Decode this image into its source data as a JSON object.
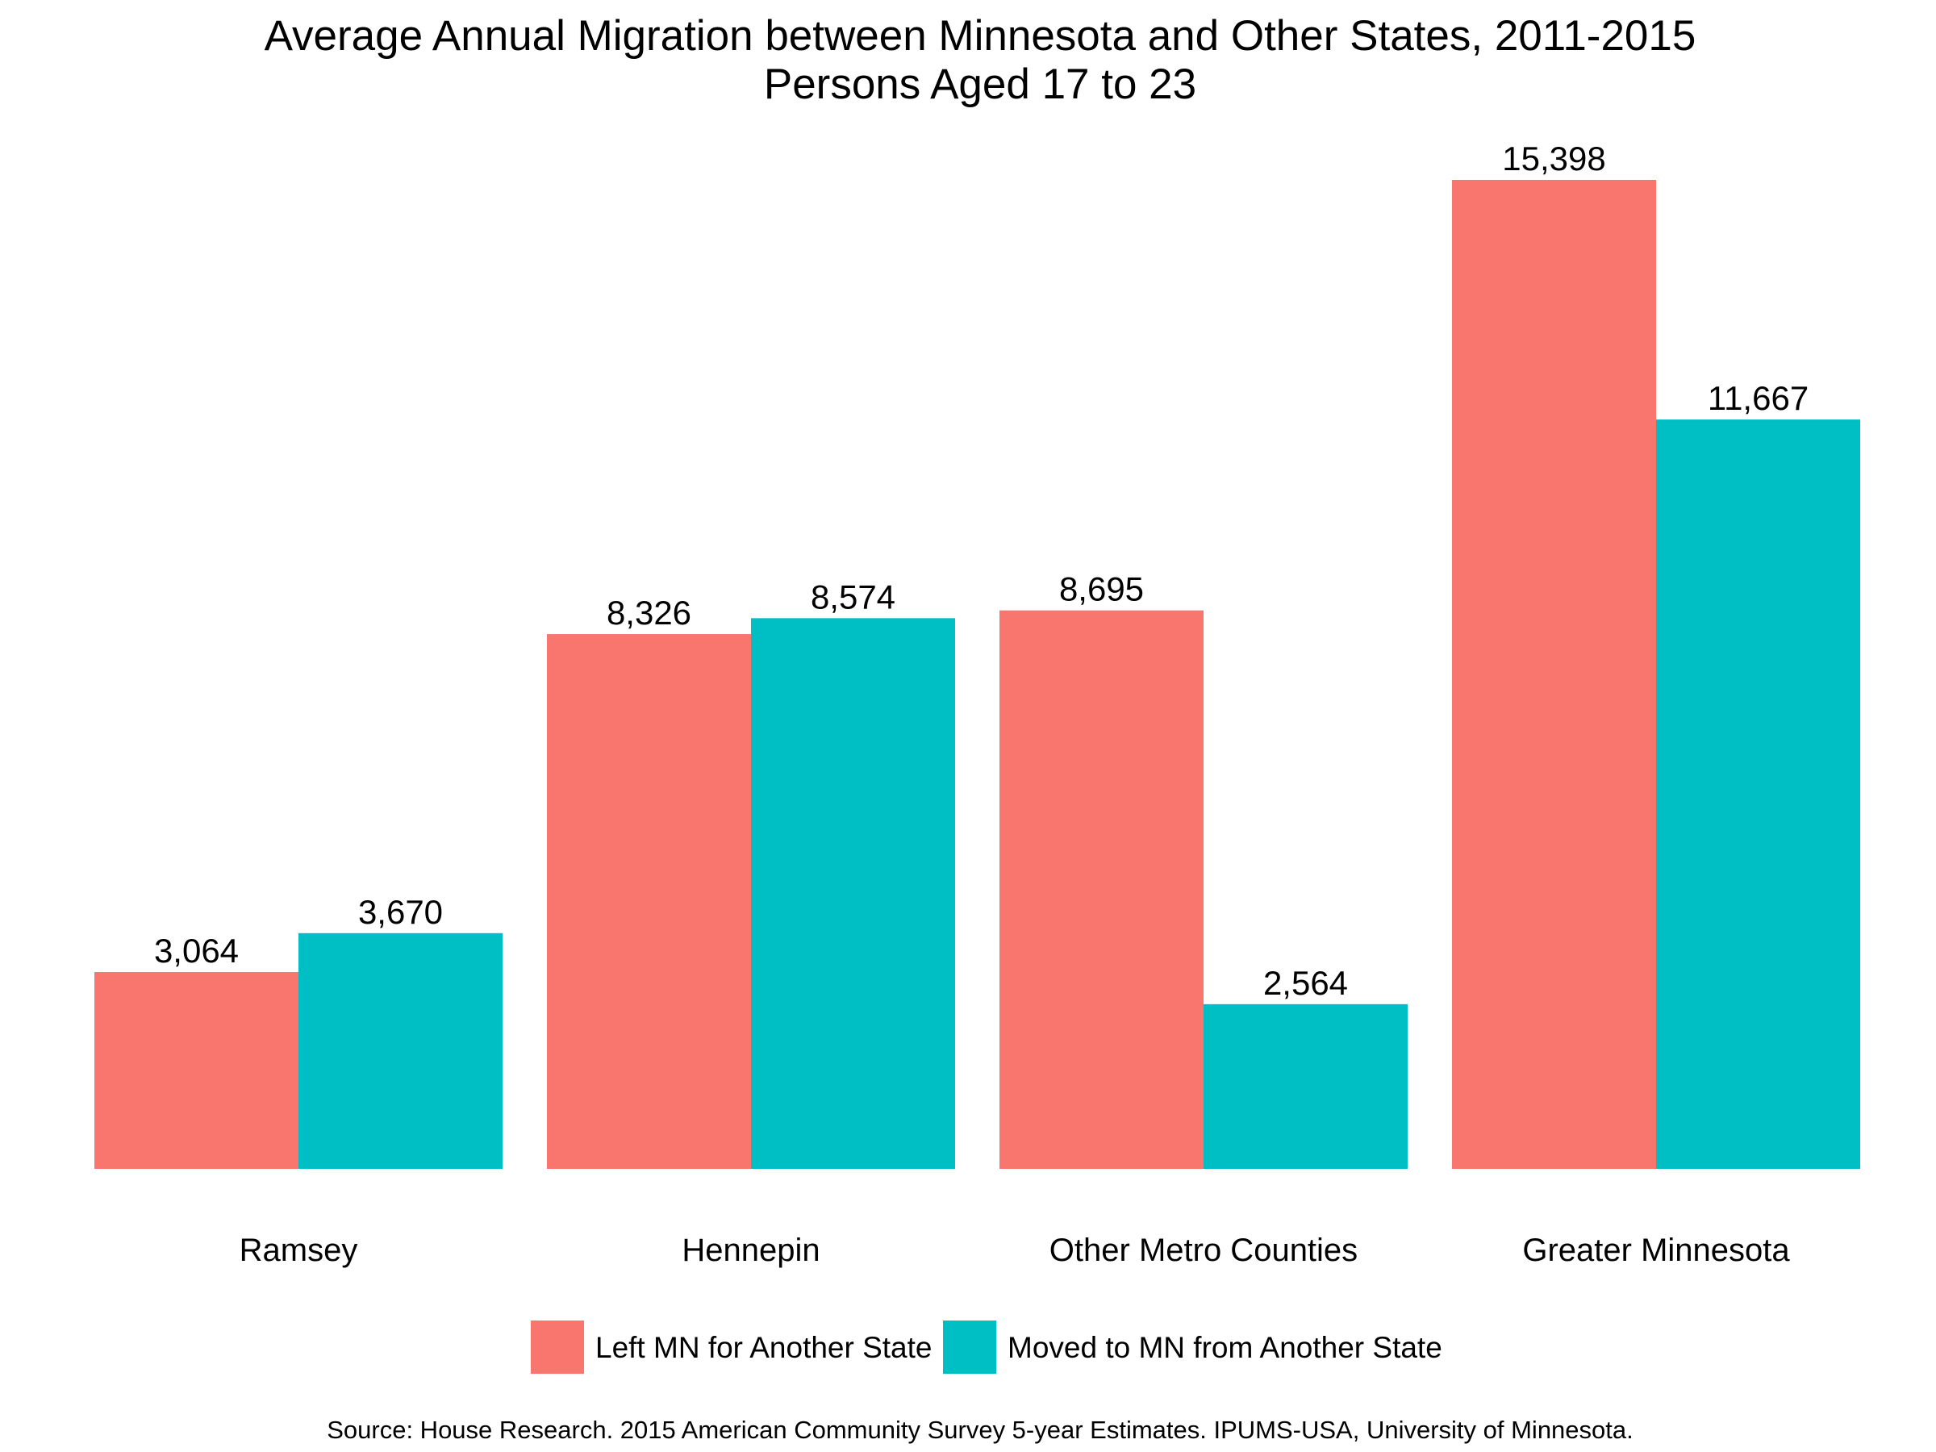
{
  "chart_data": {
    "type": "bar",
    "title": "Average Annual Migration between Minnesota and Other States, 2011-2015",
    "subtitle": "Persons Aged 17 to 23",
    "xlabel": "",
    "ylabel": "",
    "categories": [
      "Ramsey",
      "Hennepin",
      "Other Metro Counties",
      "Greater Minnesota"
    ],
    "series": [
      {
        "name": "Left MN for Another State",
        "color": "#F8766D",
        "values": [
          3064,
          8326,
          8695,
          15398
        ],
        "labels": [
          "3,064",
          "8,326",
          "8,695",
          "15,398"
        ]
      },
      {
        "name": "Moved to MN from Another State",
        "color": "#00BFC4",
        "values": [
          3670,
          8574,
          2564,
          11667
        ],
        "labels": [
          "3,670",
          "8,574",
          "2,564",
          "11,667"
        ]
      }
    ],
    "ylim": [
      0,
      15398
    ],
    "grid": false,
    "y_axis_shown": false,
    "legend_position": "bottom",
    "source": "Source: House Research. 2015 American Community Survey 5-year Estimates. IPUMS-USA, University of Minnesota."
  }
}
